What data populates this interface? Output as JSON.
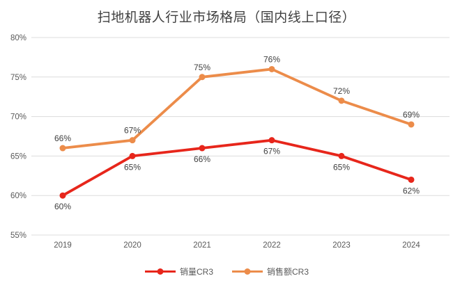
{
  "chart_data": {
    "type": "line",
    "title": "扫地机器人行业市场格局（国内线上口径）",
    "categories": [
      "2019",
      "2020",
      "2021",
      "2022",
      "2023",
      "2024"
    ],
    "series": [
      {
        "id": "sales-volume-cr3",
        "name": "销量CR3",
        "color": "#e7261b",
        "values": [
          60,
          65,
          66,
          67,
          65,
          62
        ],
        "label_position": "below"
      },
      {
        "id": "sales-value-cr3",
        "name": "销售额CR3",
        "color": "#ec8c4a",
        "values": [
          66,
          67,
          75,
          76,
          72,
          69
        ],
        "label_position": "above"
      }
    ],
    "ylim": [
      55,
      80
    ],
    "yticks": [
      55,
      60,
      65,
      70,
      75,
      80
    ],
    "ytick_suffix": "%",
    "xlabel": "",
    "ylabel": "",
    "grid": "horizontal",
    "legend_position": "bottom",
    "colors": {
      "grid": "#dcdcdc",
      "tick_text": "#595959",
      "data_label": "#404040",
      "title": "#404040",
      "background": "#ffffff"
    }
  }
}
